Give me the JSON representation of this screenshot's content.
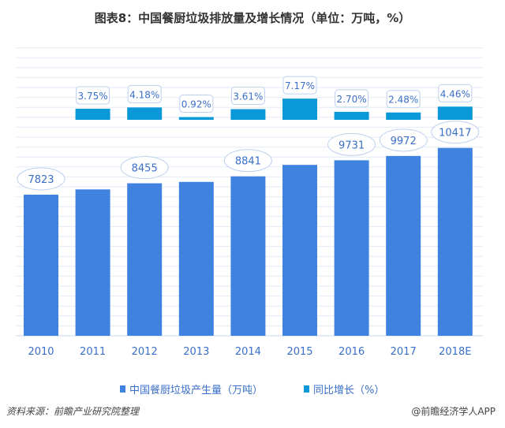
{
  "title": "图表8：中国餐厨垃圾排放量及增长情况（单位：万吨，%）",
  "chart_data": {
    "type": "bar",
    "title": "图表8：中国餐厨垃圾排放量及增长情况（单位：万吨，%）",
    "categories": [
      "2010",
      "2011",
      "2012",
      "2013",
      "2014",
      "2015",
      "2016",
      "2017",
      "2018E"
    ],
    "series": [
      {
        "name": "中国餐厨垃圾产生量（万吨）",
        "color": "#3f82e0",
        "values": [
          7823,
          8116,
          8455,
          8533,
          8841,
          9475,
          9731,
          9972,
          10417
        ],
        "labels": [
          "7823",
          null,
          "8455",
          null,
          "8841",
          null,
          "9731",
          "9972",
          "10417"
        ]
      },
      {
        "name": "同比增长（%）",
        "color": "#0a98d8",
        "values": [
          null,
          3.75,
          4.18,
          0.92,
          3.61,
          7.17,
          2.7,
          2.48,
          4.46
        ],
        "labels": [
          null,
          "3.75%",
          "4.18%",
          "0.92%",
          "3.61%",
          "7.17%",
          "2.70%",
          "2.48%",
          "4.46%"
        ]
      }
    ],
    "ylim": [
      0,
      11500
    ],
    "grid": true,
    "legend_position": "bottom"
  },
  "legend": [
    "中国餐厨垃圾产生量（万吨）",
    "同比增长（%）"
  ],
  "source": "资料来源：前瞻产业研究院整理",
  "credit": "@前瞻经济学人APP"
}
